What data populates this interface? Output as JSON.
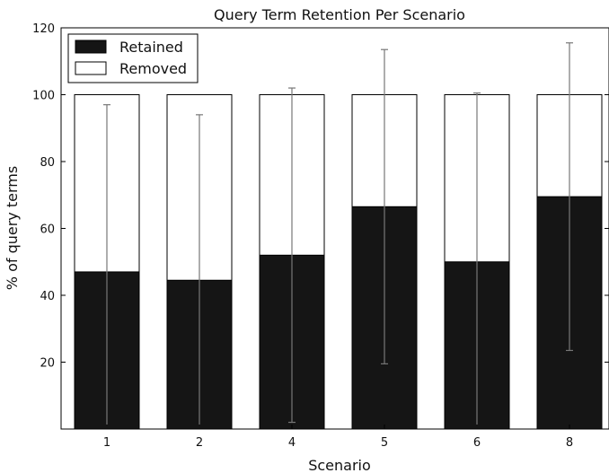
{
  "chart_data": {
    "type": "bar",
    "stacked": true,
    "title": "Query Term Retention Per Scenario",
    "xlabel": "Scenario",
    "ylabel": "% of query terms",
    "categories": [
      "1",
      "2",
      "4",
      "5",
      "6",
      "8"
    ],
    "series": [
      {
        "name": "Retained",
        "values": [
          47,
          44.5,
          52,
          66.5,
          50,
          69.5
        ]
      },
      {
        "name": "Removed",
        "values": [
          53,
          55.5,
          48,
          33.5,
          50,
          30.5
        ]
      }
    ],
    "error_bars": {
      "series": "Retained",
      "lower": [
        0,
        0,
        2,
        19.5,
        0,
        23.5
      ],
      "upper": [
        97,
        94,
        102,
        113.5,
        100.5,
        115.5
      ]
    },
    "ylim": [
      0,
      120
    ],
    "yticks": [
      20,
      40,
      60,
      80,
      100,
      120
    ],
    "grid": false,
    "legend_position": "top-left",
    "colors": {
      "Retained": "#151515",
      "Removed": "#ffffff",
      "error_bar": "#777777",
      "outline": "#000000"
    }
  }
}
